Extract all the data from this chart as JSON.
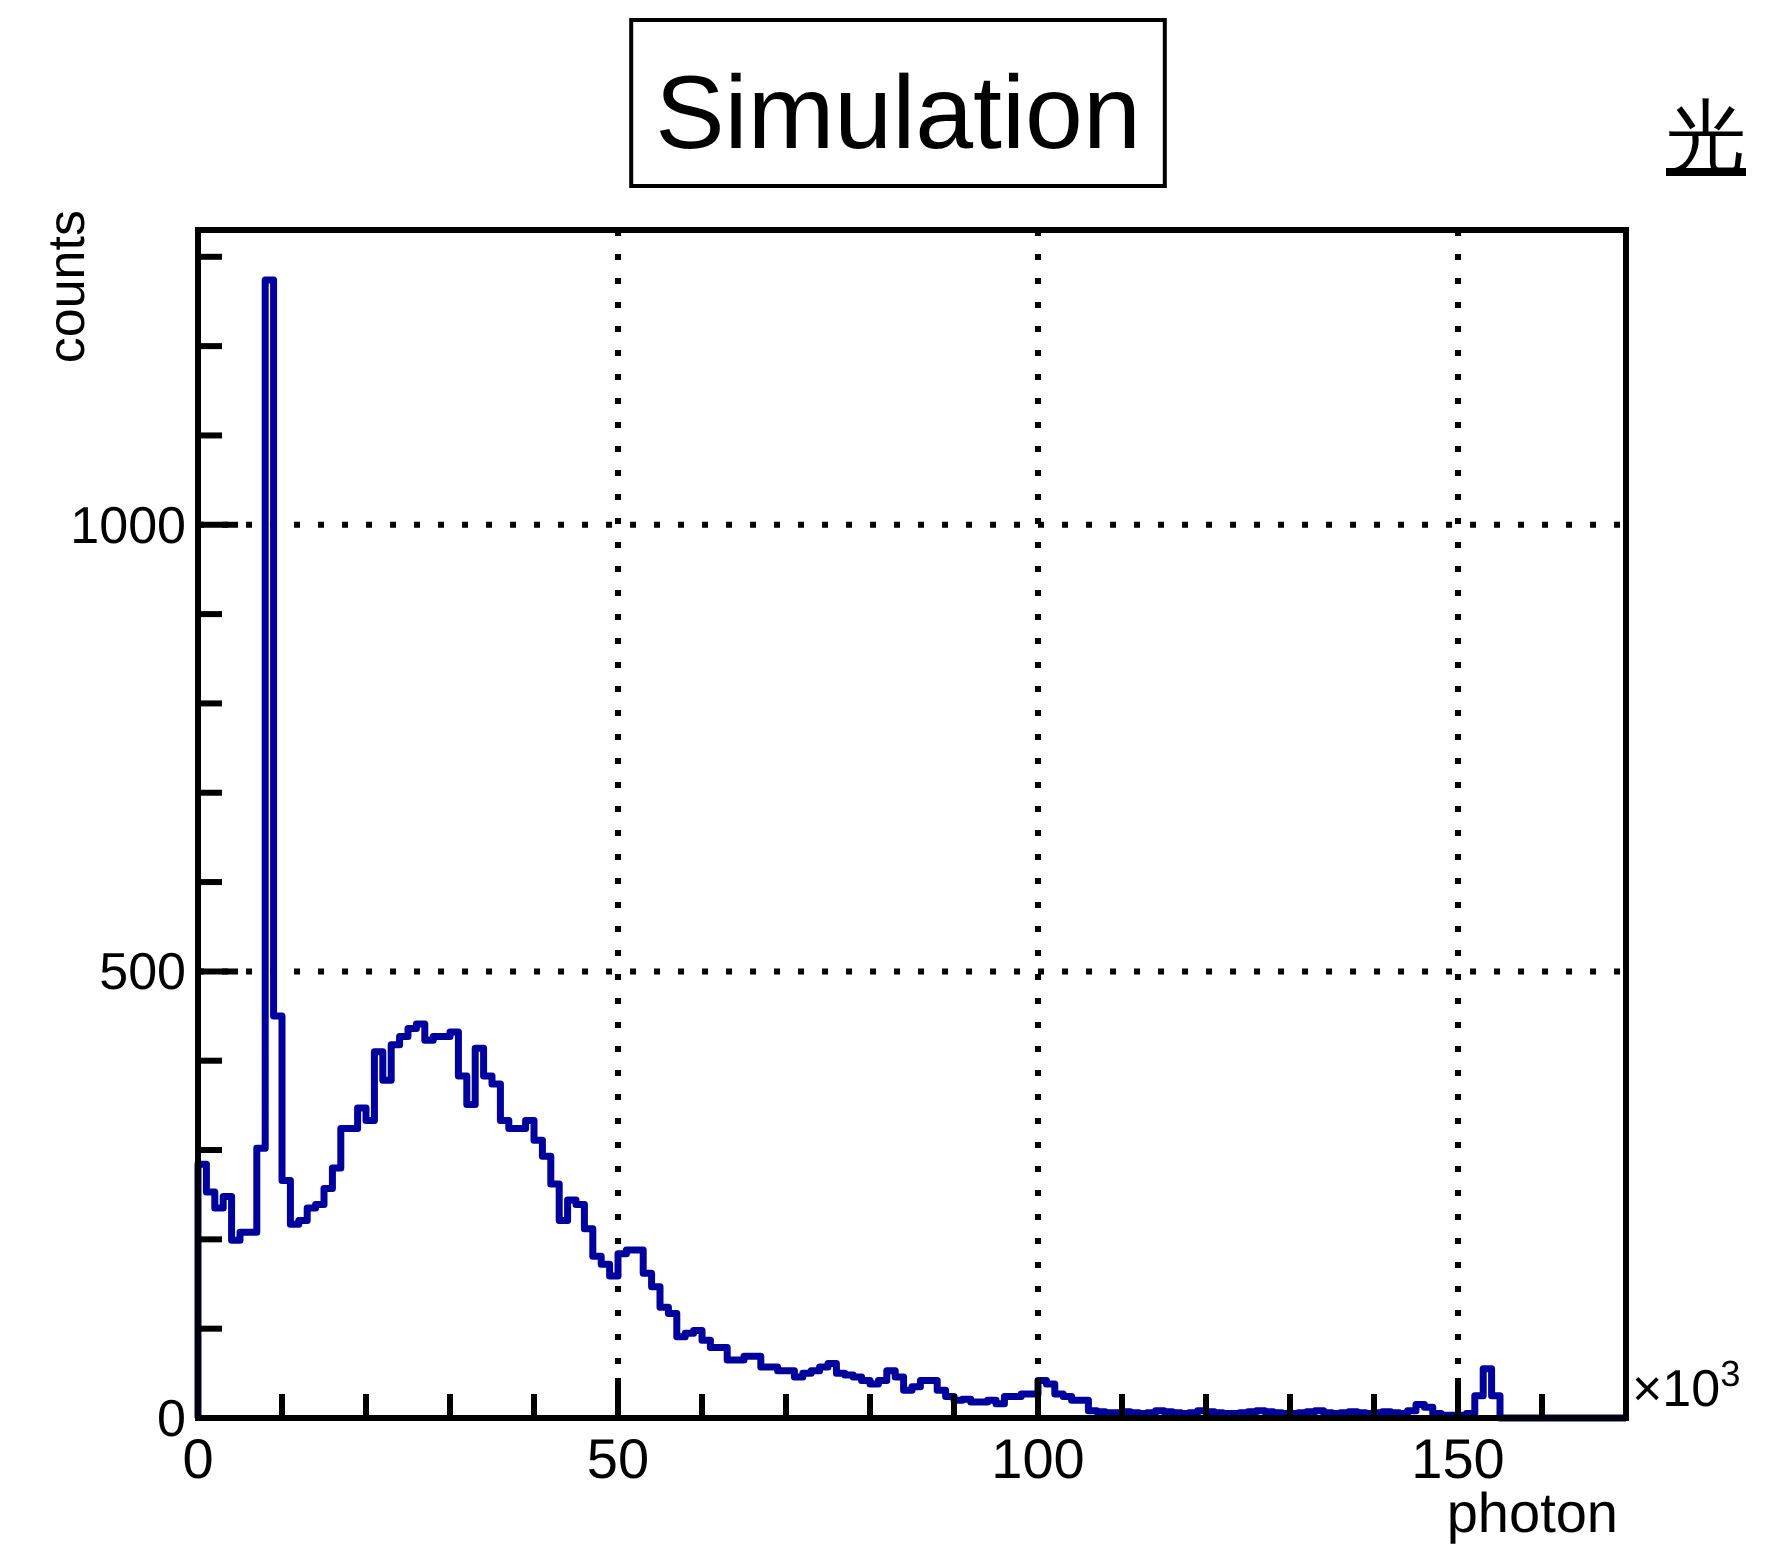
{
  "chart_data": {
    "type": "histogram",
    "title": "Simulation",
    "xlabel": "photon",
    "ylabel": "counts",
    "annotations": [
      "×10$^{3}$",
      "光"
    ],
    "color": "#00009c",
    "grid": true,
    "xlim": [
      0,
      170
    ],
    "ylim": [
      0,
      1330
    ],
    "xticks": [
      0,
      {
        "value": 10,
        "label": null
      },
      {
        "value": 20,
        "label": null
      },
      {
        "value": 30,
        "label": null
      },
      {
        "value": 40,
        "label": null
      },
      50,
      {
        "value": 60,
        "label": null
      },
      {
        "value": 70,
        "label": null
      },
      {
        "value": 80,
        "label": null
      },
      {
        "value": 90,
        "label": null
      },
      100,
      {
        "value": 110,
        "label": null
      },
      {
        "value": 120,
        "label": null
      },
      {
        "value": 130,
        "label": null
      },
      {
        "value": 140,
        "label": null
      },
      150,
      {
        "value": 160,
        "label": null
      }
    ],
    "yticks": [
      0,
      {
        "value": 100,
        "label": null
      },
      {
        "value": 200,
        "label": null
      },
      {
        "value": 300,
        "label": null
      },
      {
        "value": 400,
        "label": null
      },
      500,
      {
        "value": 600,
        "label": null
      },
      {
        "value": 700,
        "label": null
      },
      {
        "value": 800,
        "label": null
      },
      {
        "value": 900,
        "label": null
      },
      1000,
      {
        "value": 1100,
        "label": null
      },
      {
        "value": 1200,
        "label": null
      },
      {
        "value": 1300,
        "label": null
      }
    ],
    "bins": [
      0,
      1,
      2,
      3,
      4,
      5,
      6,
      7,
      8,
      9,
      10,
      11,
      12,
      13,
      14,
      15,
      16,
      17,
      18,
      19,
      20,
      21,
      22,
      23,
      24,
      25,
      26,
      27,
      28,
      29,
      30,
      31,
      32,
      33,
      34,
      35,
      36,
      37,
      38,
      39,
      40,
      41,
      42,
      43,
      44,
      45,
      46,
      47,
      48,
      49,
      50,
      51,
      52,
      53,
      54,
      55,
      56,
      57,
      58,
      59,
      60,
      61,
      62,
      63,
      64,
      65,
      66,
      67,
      68,
      69,
      70,
      71,
      72,
      73,
      74,
      75,
      76,
      77,
      78,
      79,
      80,
      81,
      82,
      83,
      84,
      85,
      86,
      87,
      88,
      89,
      90,
      91,
      92,
      93,
      94,
      95,
      96,
      97,
      98,
      99,
      100,
      101,
      102,
      103,
      104,
      105,
      106,
      107,
      108,
      109,
      110,
      111,
      112,
      113,
      114,
      115,
      116,
      117,
      118,
      119,
      120,
      121,
      122,
      123,
      124,
      125,
      126,
      127,
      128,
      129,
      130,
      131,
      132,
      133,
      134,
      135,
      136,
      137,
      138,
      139,
      140,
      141,
      142,
      143,
      144,
      145,
      146,
      147,
      148,
      149,
      150,
      151,
      152,
      153,
      154,
      155,
      156,
      157,
      158,
      159,
      160,
      161,
      162,
      163,
      164,
      165,
      166,
      167,
      168,
      169,
      170
    ],
    "values": [
      284,
      253,
      235,
      248,
      199,
      208,
      208,
      302,
      1274,
      450,
      266,
      217,
      221,
      235,
      239,
      257,
      280,
      324,
      324,
      347,
      333,
      410,
      378,
      418,
      427,
      436,
      441,
      423,
      427,
      427,
      432,
      383,
      351,
      414,
      383,
      374,
      333,
      324,
      324,
      333,
      311,
      293,
      262,
      221,
      244,
      239,
      212,
      181,
      172,
      159,
      184,
      188,
      188,
      162,
      147,
      124,
      117,
      91,
      95,
      98,
      87,
      79,
      79,
      65,
      65,
      69,
      69,
      57,
      57,
      53,
      53,
      46,
      50,
      53,
      57,
      61,
      50,
      48,
      46,
      42,
      38,
      42,
      53,
      46,
      31,
      35,
      42,
      42,
      31,
      24,
      20,
      21,
      18,
      18,
      20,
      16,
      24,
      24,
      27,
      27,
      42,
      38,
      27,
      24,
      20,
      20,
      8,
      7,
      6,
      6,
      7,
      6,
      5,
      6,
      8,
      7,
      6,
      5,
      6,
      8,
      7,
      6,
      5,
      5,
      6,
      7,
      8,
      7,
      6,
      5,
      5,
      6,
      7,
      8,
      6,
      5,
      6,
      7,
      6,
      5,
      6,
      7,
      6,
      5,
      8,
      15,
      12,
      5,
      3,
      3,
      3,
      5,
      25,
      55,
      25,
      0,
      0,
      0,
      0,
      0,
      0,
      0,
      0,
      0,
      0,
      0,
      0,
      0,
      0,
      0
    ]
  }
}
